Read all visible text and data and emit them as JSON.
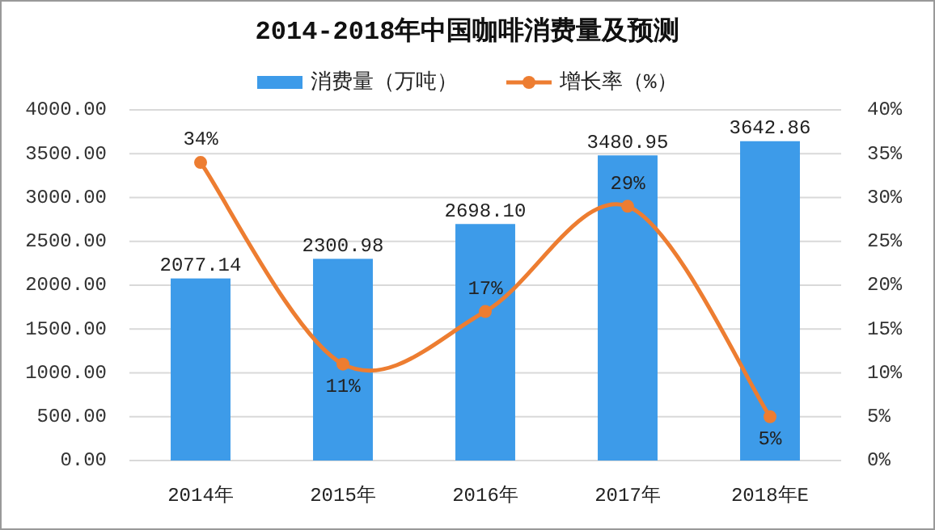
{
  "chart_data": {
    "type": "bar",
    "title": "2014-2018年中国咖啡消费量及预测",
    "categories": [
      "2014年",
      "2015年",
      "2016年",
      "2017年",
      "2018年E"
    ],
    "series": [
      {
        "name": "消费量（万吨）",
        "color": "#3d9be9",
        "values": [
          2077.14,
          2300.98,
          2698.1,
          3480.95,
          3642.86
        ],
        "value_labels": [
          "2077.14",
          "2300.98",
          "2698.10",
          "3480.95",
          "3642.86"
        ]
      },
      {
        "name": "增长率（%）",
        "type": "line",
        "axis": "y2",
        "color": "#ed7d31",
        "values": [
          34,
          11,
          17,
          29,
          5
        ],
        "value_labels": [
          "34%",
          "11%",
          "17%",
          "29%",
          "5%"
        ]
      }
    ],
    "ylim": [
      0,
      4000
    ],
    "yticks": [
      {
        "value": 0,
        "label": "0.00"
      },
      {
        "value": 500,
        "label": "500.00"
      },
      {
        "value": 1000,
        "label": "1000.00"
      },
      {
        "value": 1500,
        "label": "1500.00"
      },
      {
        "value": 2000,
        "label": "2000.00"
      },
      {
        "value": 2500,
        "label": "2500.00"
      },
      {
        "value": 3000,
        "label": "3000.00"
      },
      {
        "value": 3500,
        "label": "3500.00"
      },
      {
        "value": 4000,
        "label": "4000.00"
      }
    ],
    "y2lim": [
      0,
      40
    ],
    "y2ticks": [
      {
        "value": 0,
        "label": "0%"
      },
      {
        "value": 5,
        "label": "5%"
      },
      {
        "value": 10,
        "label": "10%"
      },
      {
        "value": 15,
        "label": "15%"
      },
      {
        "value": 20,
        "label": "20%"
      },
      {
        "value": 25,
        "label": "25%"
      },
      {
        "value": 30,
        "label": "30%"
      },
      {
        "value": 35,
        "label": "35%"
      },
      {
        "value": 40,
        "label": "40%"
      }
    ],
    "grid": "y",
    "legend": "top",
    "marker": "circle",
    "line_style": "solid"
  }
}
